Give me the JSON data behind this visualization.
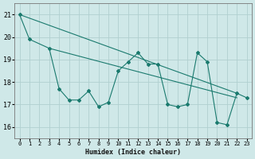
{
  "background_color": "#cfe8e8",
  "grid_color": "#b0d0d0",
  "line_color": "#1a7a6e",
  "series1": {
    "x": [
      0,
      1,
      3,
      4,
      5,
      6,
      7,
      8,
      9,
      10,
      11,
      12,
      13,
      14,
      15,
      16,
      17,
      18,
      19,
      20,
      21,
      22,
      23
    ],
    "y": [
      21.0,
      19.9,
      19.5,
      17.7,
      17.2,
      17.2,
      17.6,
      16.9,
      17.1,
      18.5,
      18.9,
      19.3,
      18.8,
      18.8,
      17.0,
      16.9,
      17.0,
      19.3,
      18.9,
      16.2,
      16.1,
      17.5,
      17.3
    ]
  },
  "trend1": {
    "x": [
      0,
      22
    ],
    "y": [
      21.0,
      17.5
    ]
  },
  "trend2": {
    "x": [
      3,
      22
    ],
    "y": [
      19.5,
      17.3
    ]
  },
  "xlabel": "Humidex (Indice chaleur)",
  "xlim": [
    -0.5,
    23.5
  ],
  "ylim": [
    15.5,
    21.5
  ],
  "yticks": [
    16,
    17,
    18,
    19,
    20,
    21
  ],
  "xticks": [
    0,
    1,
    2,
    3,
    4,
    5,
    6,
    7,
    8,
    9,
    10,
    11,
    12,
    13,
    14,
    15,
    16,
    17,
    18,
    19,
    20,
    21,
    22,
    23
  ]
}
